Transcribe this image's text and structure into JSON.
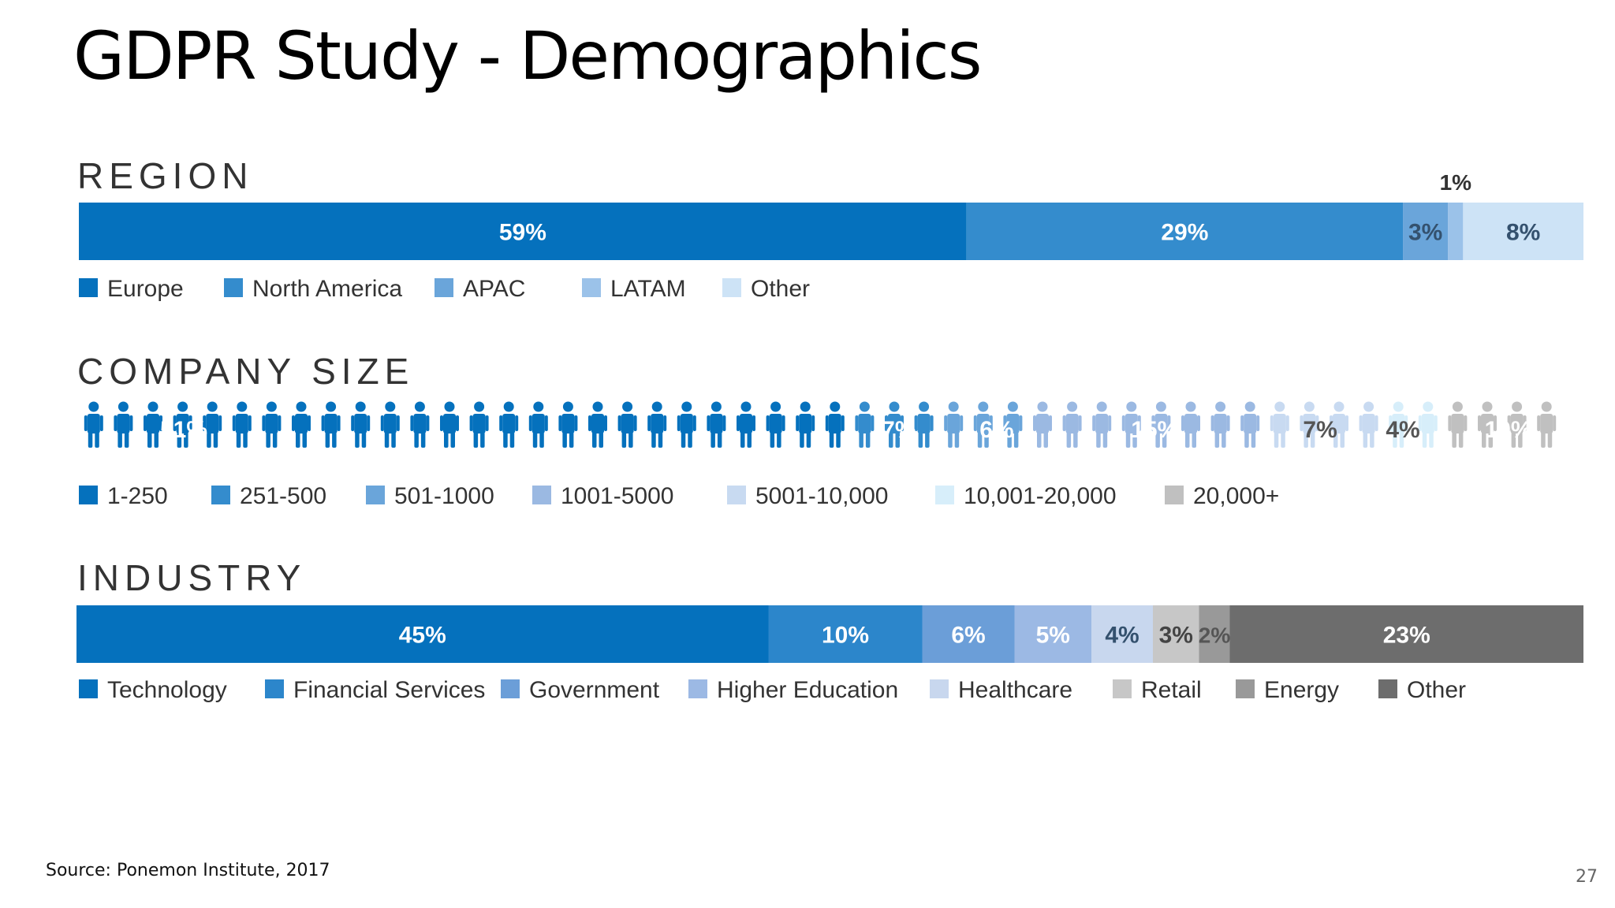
{
  "slide": {
    "title": "GDPR Study - Demographics",
    "source": "Source: Ponemon Institute, 2017",
    "page_number": "27"
  },
  "chart_data": [
    {
      "type": "bar",
      "stacked": true,
      "orientation": "horizontal",
      "title": "REGION",
      "categories": [
        "Europe",
        "North America",
        "APAC",
        "LATAM",
        "Other"
      ],
      "values": [
        59,
        29,
        3,
        1,
        8
      ],
      "labels": [
        "59%",
        "29%",
        "3%",
        "1%",
        "8%"
      ],
      "colors": [
        "#0571bd",
        "#348ccd",
        "#6aa5da",
        "#9bc2e9",
        "#cde3f6"
      ],
      "legend": "bottom"
    },
    {
      "type": "bar",
      "stacked": true,
      "orientation": "horizontal",
      "style": "pictogram",
      "title": "COMPANY SIZE",
      "categories": [
        "1-250",
        "251-500",
        "501-1000",
        "1001-5000",
        "5001-10,000",
        "10,001-20,000",
        "20,000+"
      ],
      "values": [
        51,
        7,
        6,
        15,
        7,
        4,
        10
      ],
      "labels": [
        "51%",
        "7%",
        "6%",
        "15%",
        "7%",
        "4%",
        "10%"
      ],
      "colors": [
        "#0571bd",
        "#348ccd",
        "#6aa5da",
        "#9bb9e2",
        "#c8daf1",
        "#d7eefa",
        "#c0c0c0"
      ],
      "legend": "bottom"
    },
    {
      "type": "bar",
      "stacked": true,
      "orientation": "horizontal",
      "title": "INDUSTRY",
      "categories": [
        "Technology",
        "Financial Services",
        "Government",
        "Higher Education",
        "Healthcare",
        "Retail",
        "Energy",
        "Other"
      ],
      "values": [
        45,
        10,
        6,
        5,
        4,
        3,
        2,
        23
      ],
      "labels": [
        "45%",
        "10%",
        "6%",
        "5%",
        "4%",
        "3%",
        "2%",
        "23%"
      ],
      "colors": [
        "#0571bd",
        "#2c86cb",
        "#6b9ed8",
        "#9cb9e4",
        "#c8d7ee",
        "#c7c7c7",
        "#999999",
        "#6d6d6d"
      ],
      "legend": "bottom"
    }
  ]
}
